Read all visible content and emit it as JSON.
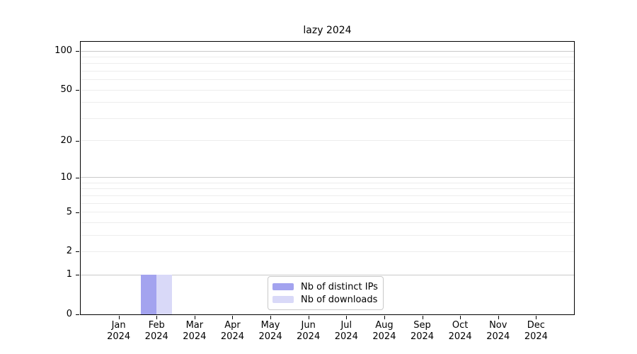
{
  "chart_data": {
    "type": "bar",
    "title": "lazy 2024",
    "categories": [
      "Jan",
      "Feb",
      "Mar",
      "Apr",
      "May",
      "Jun",
      "Jul",
      "Aug",
      "Sep",
      "Oct",
      "Nov",
      "Dec"
    ],
    "category_year": "2024",
    "series": [
      {
        "name": "Nb of distinct IPs",
        "color": "#a3a3ef",
        "values": [
          0,
          1,
          0,
          0,
          0,
          0,
          0,
          0,
          0,
          0,
          0,
          0
        ]
      },
      {
        "name": "Nb of downloads",
        "color": "#d9d9f8",
        "values": [
          0,
          1,
          0,
          0,
          0,
          0,
          0,
          0,
          0,
          0,
          0,
          0
        ]
      }
    ],
    "yscale": "log1p",
    "ylim": [
      0,
      118
    ],
    "ytick_values": [
      0,
      1,
      2,
      5,
      10,
      20,
      50,
      100
    ],
    "grid": {
      "major_values": [
        1,
        10,
        100
      ],
      "minor_values": [
        2,
        3,
        4,
        5,
        6,
        7,
        8,
        9,
        20,
        30,
        40,
        50,
        60,
        70,
        80,
        90
      ],
      "major_color": "#c9c9c9",
      "minor_color": "#ededed"
    },
    "legend": {
      "position": "lower center",
      "entries": [
        "Nb of distinct IPs",
        "Nb of downloads"
      ]
    },
    "xlabel": "",
    "ylabel": ""
  }
}
